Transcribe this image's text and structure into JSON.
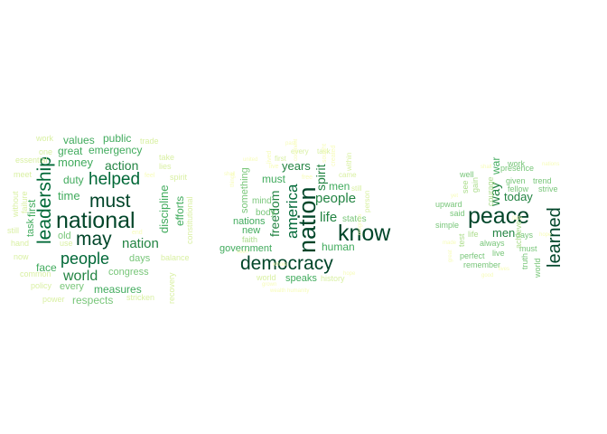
{
  "chart_data": {
    "type": "wordcloud",
    "palette": [
      "#f7fcb9",
      "#d9f0a3",
      "#addd8e",
      "#78c679",
      "#41ab5d",
      "#238443",
      "#006837",
      "#004529"
    ],
    "clouds": [
      {
        "words": [
          {
            "word": "national",
            "weight": 10
          },
          {
            "word": "leadership",
            "weight": 8
          },
          {
            "word": "must",
            "weight": 8
          },
          {
            "word": "may",
            "weight": 8
          },
          {
            "word": "helped",
            "weight": 8
          },
          {
            "word": "people",
            "weight": 7
          },
          {
            "word": "world",
            "weight": 6
          },
          {
            "word": "nation",
            "weight": 6
          },
          {
            "word": "action",
            "weight": 5
          },
          {
            "word": "money",
            "weight": 5
          },
          {
            "word": "time",
            "weight": 5
          },
          {
            "word": "discipline",
            "weight": 5
          },
          {
            "word": "efforts",
            "weight": 4
          },
          {
            "word": "first",
            "weight": 4
          },
          {
            "word": "task",
            "weight": 4
          },
          {
            "word": "values",
            "weight": 4
          },
          {
            "word": "public",
            "weight": 4
          },
          {
            "word": "emergency",
            "weight": 4
          },
          {
            "word": "great",
            "weight": 4
          },
          {
            "word": "duty",
            "weight": 4
          },
          {
            "word": "measures",
            "weight": 4
          },
          {
            "word": "respects",
            "weight": 4
          },
          {
            "word": "congress",
            "weight": 3
          },
          {
            "word": "days",
            "weight": 3
          },
          {
            "word": "face",
            "weight": 4
          },
          {
            "word": "every",
            "weight": 3
          },
          {
            "word": "old",
            "weight": 3
          },
          {
            "word": "trade",
            "weight": 2
          },
          {
            "word": "work",
            "weight": 2
          },
          {
            "word": "one",
            "weight": 2
          },
          {
            "word": "essential",
            "weight": 2
          },
          {
            "word": "meet",
            "weight": 2
          },
          {
            "word": "without",
            "weight": 2
          },
          {
            "word": "failure",
            "weight": 2
          },
          {
            "word": "still",
            "weight": 2
          },
          {
            "word": "hand",
            "weight": 2
          },
          {
            "word": "now",
            "weight": 2
          },
          {
            "word": "common",
            "weight": 2
          },
          {
            "word": "policy",
            "weight": 2
          },
          {
            "word": "power",
            "weight": 2
          },
          {
            "word": "stricken",
            "weight": 2
          },
          {
            "word": "recovery",
            "weight": 2
          },
          {
            "word": "balance",
            "weight": 2
          },
          {
            "word": "constitutional",
            "weight": 2
          },
          {
            "word": "spirit",
            "weight": 2
          },
          {
            "word": "take",
            "weight": 2
          },
          {
            "word": "lies",
            "weight": 2
          },
          {
            "word": "use",
            "weight": 2
          },
          {
            "word": "end",
            "weight": 1
          },
          {
            "word": "feel",
            "weight": 1
          }
        ]
      },
      {
        "words": [
          {
            "word": "nation",
            "weight": 10
          },
          {
            "word": "know",
            "weight": 9
          },
          {
            "word": "democracy",
            "weight": 8
          },
          {
            "word": "america",
            "weight": 7
          },
          {
            "word": "people",
            "weight": 6
          },
          {
            "word": "life",
            "weight": 6
          },
          {
            "word": "freedom",
            "weight": 6
          },
          {
            "word": "spirit",
            "weight": 5
          },
          {
            "word": "years",
            "weight": 5
          },
          {
            "word": "human",
            "weight": 5
          },
          {
            "word": "must",
            "weight": 4
          },
          {
            "word": "men",
            "weight": 4
          },
          {
            "word": "speaks",
            "weight": 4
          },
          {
            "word": "government",
            "weight": 4
          },
          {
            "word": "new",
            "weight": 4
          },
          {
            "word": "nations",
            "weight": 4
          },
          {
            "word": "something",
            "weight": 3
          },
          {
            "word": "states",
            "weight": 3
          },
          {
            "word": "mind",
            "weight": 3
          },
          {
            "word": "body",
            "weight": 3
          },
          {
            "word": "faith",
            "weight": 2
          },
          {
            "word": "world",
            "weight": 2
          },
          {
            "word": "history",
            "weight": 2
          },
          {
            "word": "first",
            "weight": 2
          },
          {
            "word": "every",
            "weight": 2
          },
          {
            "word": "task",
            "weight": 2
          },
          {
            "word": "came",
            "weight": 2
          },
          {
            "word": "within",
            "weight": 2
          },
          {
            "word": "still",
            "weight": 2
          },
          {
            "word": "person",
            "weight": 2
          },
          {
            "word": "lived",
            "weight": 1
          },
          {
            "word": "free",
            "weight": 1
          },
          {
            "word": "live",
            "weight": 1
          },
          {
            "word": "past",
            "weight": 1
          },
          {
            "word": "grown",
            "weight": 1
          },
          {
            "word": "shall",
            "weight": 1
          },
          {
            "word": "created",
            "weight": 1
          },
          {
            "word": "whole",
            "weight": 1
          },
          {
            "word": "wealth",
            "weight": 1
          },
          {
            "word": "hope",
            "weight": 1
          },
          {
            "word": "united",
            "weight": 1
          },
          {
            "word": "progress",
            "weight": 1
          },
          {
            "word": "things",
            "weight": 1
          },
          {
            "word": "continent",
            "weight": 1
          },
          {
            "word": "sought",
            "weight": 1
          },
          {
            "word": "seen",
            "weight": 1
          },
          {
            "word": "humanity",
            "weight": 1
          }
        ]
      },
      {
        "words": [
          {
            "word": "peace",
            "weight": 10
          },
          {
            "word": "learned",
            "weight": 8
          },
          {
            "word": "way",
            "weight": 6
          },
          {
            "word": "today",
            "weight": 5
          },
          {
            "word": "men",
            "weight": 5
          },
          {
            "word": "war",
            "weight": 4
          },
          {
            "word": "work",
            "weight": 3
          },
          {
            "word": "presence",
            "weight": 3
          },
          {
            "word": "well",
            "weight": 3
          },
          {
            "word": "given",
            "weight": 3
          },
          {
            "word": "trend",
            "weight": 3
          },
          {
            "word": "fellow",
            "weight": 3
          },
          {
            "word": "strive",
            "weight": 3
          },
          {
            "word": "upward",
            "weight": 3
          },
          {
            "word": "said",
            "weight": 3
          },
          {
            "word": "simple",
            "weight": 3
          },
          {
            "word": "days",
            "weight": 3
          },
          {
            "word": "must",
            "weight": 3
          },
          {
            "word": "always",
            "weight": 3
          },
          {
            "word": "perfect",
            "weight": 3
          },
          {
            "word": "live",
            "weight": 3
          },
          {
            "word": "remember",
            "weight": 3
          },
          {
            "word": "truth",
            "weight": 3
          },
          {
            "word": "world",
            "weight": 3
          },
          {
            "word": "test",
            "weight": 2
          },
          {
            "word": "life",
            "weight": 2
          },
          {
            "word": "gain",
            "weight": 2
          },
          {
            "word": "see",
            "weight": 2
          },
          {
            "word": "courage",
            "weight": 2
          },
          {
            "word": "achieve",
            "weight": 2
          },
          {
            "word": "yet",
            "weight": 1
          },
          {
            "word": "shall",
            "weight": 1
          },
          {
            "word": "great",
            "weight": 1
          },
          {
            "word": "good",
            "weight": 1
          },
          {
            "word": "nations",
            "weight": 1
          },
          {
            "word": "faith",
            "weight": 1
          },
          {
            "word": "made",
            "weight": 1
          },
          {
            "word": "hope",
            "weight": 1
          },
          {
            "word": "lives",
            "weight": 1
          }
        ]
      }
    ]
  }
}
